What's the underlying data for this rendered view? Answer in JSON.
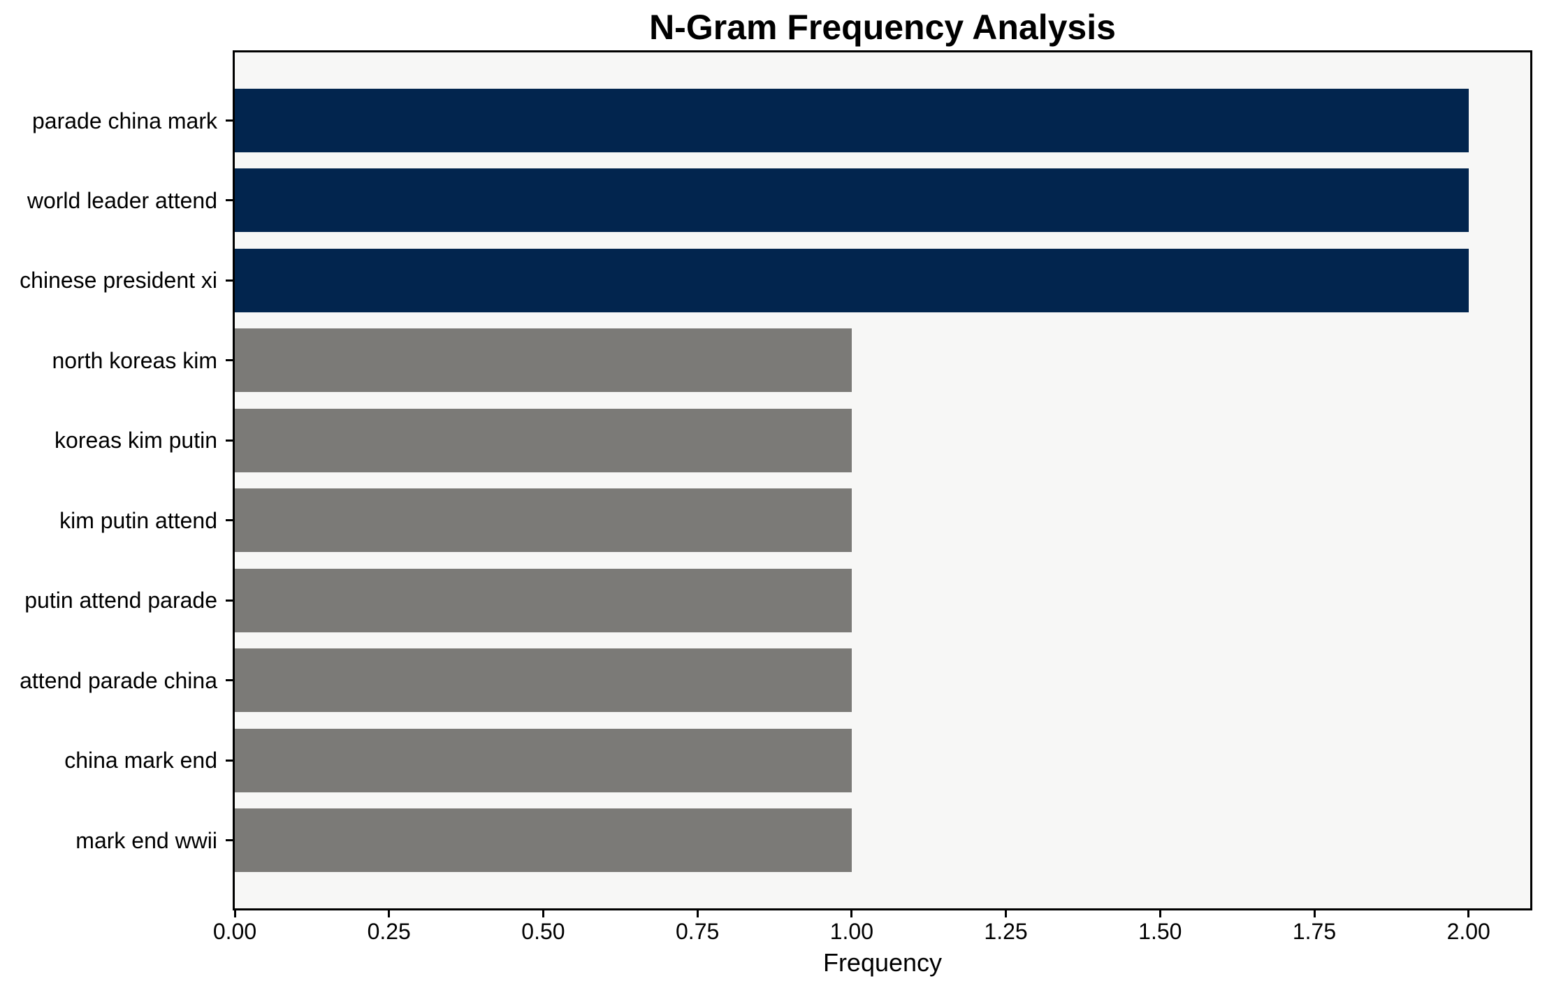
{
  "chart_data": {
    "type": "bar",
    "orientation": "horizontal",
    "title": "N-Gram Frequency Analysis",
    "xlabel": "Frequency",
    "ylabel": "",
    "categories": [
      "parade china mark",
      "world leader attend",
      "chinese president xi",
      "north koreas kim",
      "koreas kim putin",
      "kim putin attend",
      "putin attend parade",
      "attend parade china",
      "china mark end",
      "mark end wwii"
    ],
    "values": [
      2,
      2,
      2,
      1,
      1,
      1,
      1,
      1,
      1,
      1
    ],
    "bar_colors": [
      "#02254e",
      "#02254e",
      "#02254e",
      "#7b7a77",
      "#7b7a77",
      "#7b7a77",
      "#7b7a77",
      "#7b7a77",
      "#7b7a77",
      "#7b7a77"
    ],
    "xlim": [
      0,
      2.1
    ],
    "xtick_values": [
      0,
      0.25,
      0.5,
      0.75,
      1.0,
      1.25,
      1.5,
      1.75,
      2.0
    ],
    "xtick_labels": [
      "0.00",
      "0.25",
      "0.50",
      "0.75",
      "1.00",
      "1.25",
      "1.50",
      "1.75",
      "2.00"
    ],
    "grid": false,
    "legend": false,
    "plot_background": "#f7f7f6",
    "axis_color": "#000000",
    "bar_height_frac": 0.8
  }
}
